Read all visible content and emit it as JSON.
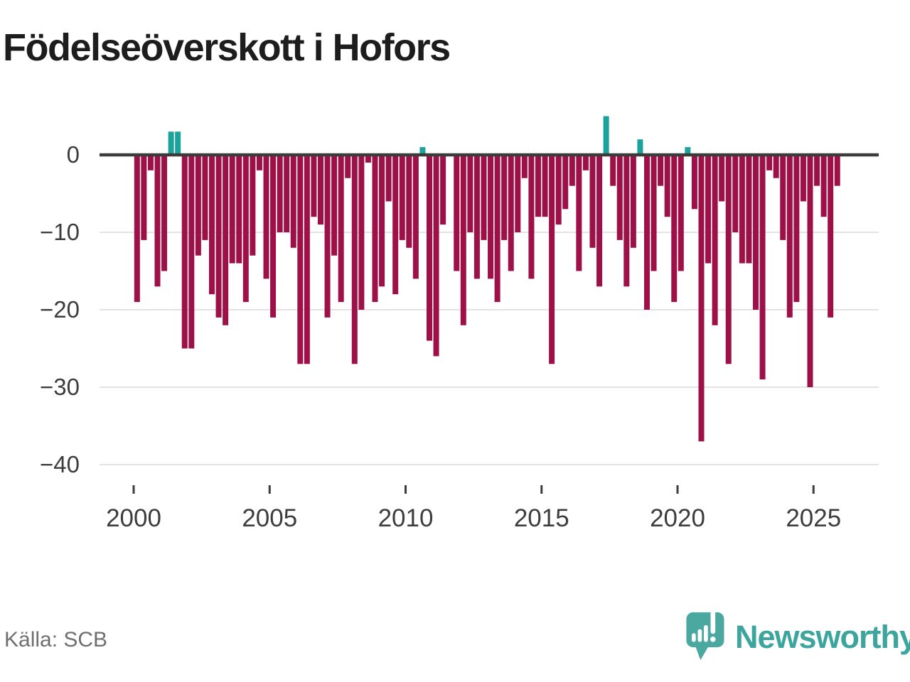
{
  "title": "Födelseöverskott i Hofors",
  "source": "Källa: SCB",
  "brand": {
    "name": "Newsworthy",
    "logo": "newsworthy-speech-bubble-chart-icon"
  },
  "colors": {
    "negative_bar": "#9e1048",
    "positive_bar": "#1aa29b",
    "zero_axis": "#3b3b3b",
    "gridline": "#e3e3e3",
    "axis_text": "#3d3d3d",
    "title_text": "#1d1d1d",
    "source_text": "#6f6f6f",
    "brand_teal": "#3ca59e",
    "logo_bubble": "#4aa8a1",
    "background": "#ffffff"
  },
  "chart_data": {
    "type": "bar",
    "title": "Födelseöverskott i Hofors",
    "frequency": "quarterly",
    "start_period": "2000-Q1",
    "end_period": "2025-Q4",
    "values": [
      -19,
      -11,
      -2,
      -17,
      -15,
      3,
      3,
      -25,
      -25,
      -13,
      -11,
      -18,
      -21,
      -22,
      -14,
      -14,
      -19,
      -13,
      -2,
      -16,
      -21,
      -10,
      -10,
      -12,
      -27,
      -27,
      -8,
      -9,
      -21,
      -13,
      -19,
      -3,
      -27,
      -20,
      -1,
      -19,
      -17,
      -6,
      -18,
      -11,
      -12,
      -16,
      1,
      -24,
      -26,
      -9,
      0,
      -15,
      -22,
      -10,
      -16,
      -11,
      -16,
      -19,
      -11,
      -15,
      -10,
      -3,
      -16,
      -8,
      -8,
      -27,
      -9,
      -7,
      -4,
      -15,
      -2,
      -12,
      -17,
      5,
      -4,
      -11,
      -17,
      -12,
      2,
      -20,
      -15,
      -4,
      -8,
      -19,
      -15,
      1,
      -7,
      -37,
      -14,
      -22,
      -6,
      -27,
      -10,
      -14,
      -14,
      -20,
      -29,
      -2,
      -3,
      -11,
      -21,
      -19,
      -6,
      -30,
      -4,
      -8,
      -21,
      -4
    ],
    "x_tick_years": [
      2000,
      2005,
      2010,
      2015,
      2020,
      2025
    ],
    "x_tick_labels": [
      "2000",
      "2005",
      "2010",
      "2015",
      "2020",
      "2025"
    ],
    "y_ticks": [
      0,
      -10,
      -20,
      -30,
      -40
    ],
    "y_tick_labels": [
      "0",
      "−10",
      "−20",
      "−30",
      "−40"
    ],
    "ylim": [
      -41.5,
      6
    ],
    "grid": "horizontal-only",
    "legend": "none",
    "bar_colors": {
      "negative": "#9e1048",
      "positive": "#1aa29b"
    }
  }
}
